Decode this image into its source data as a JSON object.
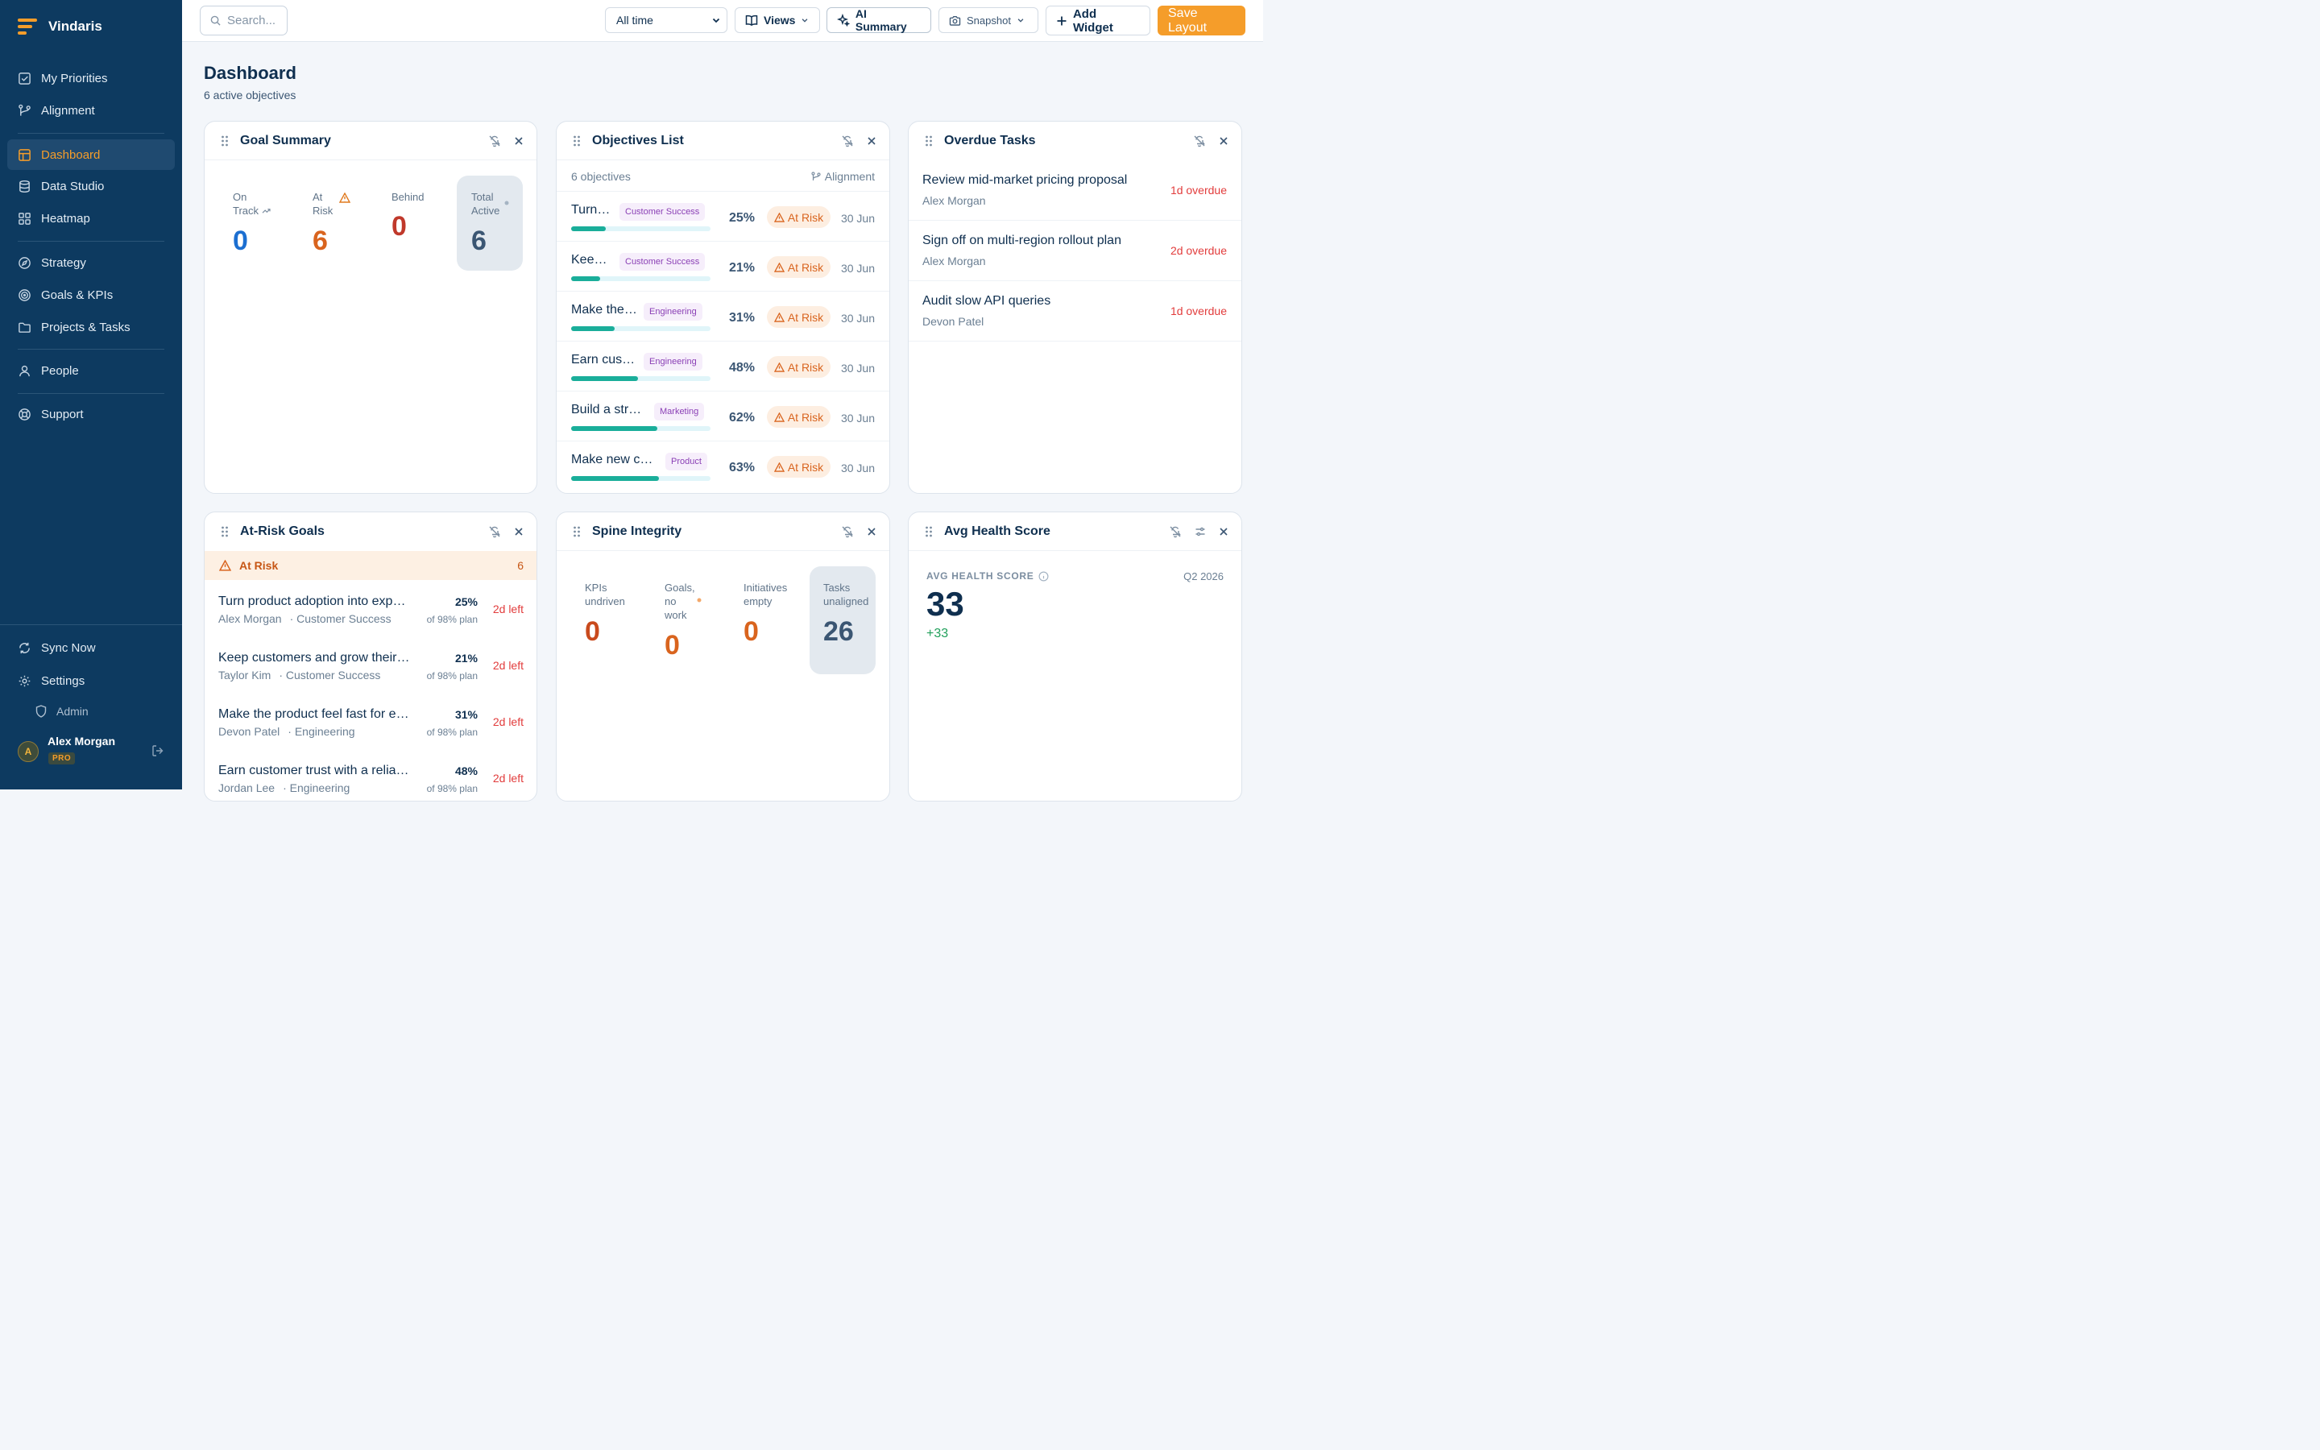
{
  "brand": {
    "name": "Vindaris"
  },
  "nav": {
    "my_priorities": "My Priorities",
    "alignment": "Alignment",
    "dashboard": "Dashboard",
    "data_studio": "Data Studio",
    "heatmap": "Heatmap",
    "strategy": "Strategy",
    "goals_kpis": "Goals & KPIs",
    "projects_tasks": "Projects & Tasks",
    "people": "People",
    "support": "Support",
    "sync_now": "Sync Now",
    "settings": "Settings",
    "admin": "Admin"
  },
  "user": {
    "initial": "A",
    "name": "Alex Morgan",
    "plan": "PRO"
  },
  "toolbar": {
    "search_placeholder": "Search...",
    "time_range": "All time",
    "views": "Views",
    "ai_summary": "AI Summary",
    "snapshot": "Snapshot",
    "add_widget": "Add Widget",
    "save_layout": "Save Layout"
  },
  "page": {
    "title": "Dashboard",
    "subtitle": "6 active objectives"
  },
  "goal_summary": {
    "title": "Goal Summary",
    "on_track": {
      "label_1": "On",
      "label_2": "Track",
      "value": "0"
    },
    "at_risk": {
      "label_1": "At",
      "label_2": "Risk",
      "value": "6"
    },
    "behind": {
      "label_1": "Behind",
      "value": "0"
    },
    "total_active": {
      "label_1": "Total",
      "label_2": "Active",
      "value": "6"
    }
  },
  "objectives": {
    "title": "Objectives List",
    "count_label": "6 objectives",
    "alignment_link": "Alignment",
    "rows": [
      {
        "name": "Turn product adoption into expansion revenue",
        "tag": "Customer Success",
        "progress": 25,
        "pct": "25%",
        "status": "At Risk",
        "due": "30 Jun"
      },
      {
        "name": "Keep customers and grow their accounts",
        "tag": "Customer Success",
        "progress": 21,
        "pct": "21%",
        "status": "At Risk",
        "due": "30 Jun"
      },
      {
        "name": "Make the product feel fast for every user",
        "tag": "Engineering",
        "progress": 31,
        "pct": "31%",
        "status": "At Risk",
        "due": "30 Jun"
      },
      {
        "name": "Earn customer trust with a reliable platform",
        "tag": "Engineering",
        "progress": 48,
        "pct": "48%",
        "status": "At Risk",
        "due": "30 Jun"
      },
      {
        "name": "Build a strong brand pipeline",
        "tag": "Marketing",
        "progress": 62,
        "pct": "62%",
        "status": "At Risk",
        "due": "30 Jun"
      },
      {
        "name": "Make new customers successful",
        "tag": "Product",
        "progress": 63,
        "pct": "63%",
        "status": "At Risk",
        "due": "30 Jun"
      }
    ]
  },
  "overdue": {
    "title": "Overdue Tasks",
    "rows": [
      {
        "task": "Review mid-market pricing proposal",
        "owner": "Alex Morgan",
        "late": "1d overdue"
      },
      {
        "task": "Sign off on multi-region rollout plan",
        "owner": "Alex Morgan",
        "late": "2d overdue"
      },
      {
        "task": "Audit slow API queries",
        "owner": "Devon Patel",
        "late": "1d overdue"
      }
    ]
  },
  "at_risk_goals": {
    "title": "At-Risk Goals",
    "band_label": "At Risk",
    "band_count": "6",
    "rows": [
      {
        "title": "Turn product adoption into expansion revenue",
        "owner": "Alex Morgan",
        "team": "· Customer Success",
        "pct": "25%",
        "plan": "of 98% plan",
        "left": "2d left"
      },
      {
        "title": "Keep customers and grow their accounts",
        "owner": "Taylor Kim",
        "team": "· Customer Success",
        "pct": "21%",
        "plan": "of 98% plan",
        "left": "2d left"
      },
      {
        "title": "Make the product feel fast for every user",
        "owner": "Devon Patel",
        "team": "· Engineering",
        "pct": "31%",
        "plan": "of 98% plan",
        "left": "2d left"
      },
      {
        "title": "Earn customer trust with a reliable platform",
        "owner": "Jordan Lee",
        "team": "· Engineering",
        "pct": "48%",
        "plan": "of 98% plan",
        "left": "2d left"
      }
    ]
  },
  "spine": {
    "title": "Spine Integrity",
    "kpis": {
      "label_1": "KPIs",
      "label_2": "undriven",
      "value": "0"
    },
    "goals": {
      "label_1": "Goals,",
      "label_2": "no",
      "label_3": "work",
      "value": "0"
    },
    "initiatives": {
      "label_1": "Initiatives",
      "label_2": "empty",
      "value": "0"
    },
    "tasks": {
      "label_1": "Tasks",
      "label_2": "unaligned",
      "value": "26"
    }
  },
  "health": {
    "title": "Avg Health Score",
    "label": "AVG HEALTH SCORE",
    "period": "Q2 2026",
    "value": "33",
    "delta": "+33"
  },
  "colors": {
    "sidebar": "#0d3a60",
    "accent": "#f59d2a",
    "on_track": "#1c6fd1",
    "at_risk": "#d9641e",
    "behind": "#c0392b",
    "progress": "#1aae9a"
  }
}
